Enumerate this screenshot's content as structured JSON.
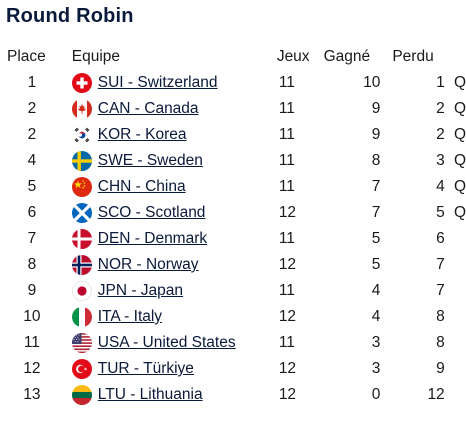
{
  "title": "Round Robin",
  "headers": {
    "place": "Place",
    "team": "Equipe",
    "games": "Jeux",
    "won": "Gagné",
    "lost": "Perdu"
  },
  "rows": [
    {
      "place": "1",
      "flag": "switzerland-flag-icon",
      "team": "SUI - Switzerland",
      "games": "11",
      "won": "10",
      "lost": "1",
      "q": "Q"
    },
    {
      "place": "2",
      "flag": "canada-flag-icon",
      "team": "CAN - Canada",
      "games": "11",
      "won": "9",
      "lost": "2",
      "q": "Q"
    },
    {
      "place": "2",
      "flag": "korea-flag-icon",
      "team": "KOR - Korea",
      "games": "11",
      "won": "9",
      "lost": "2",
      "q": "Q"
    },
    {
      "place": "4",
      "flag": "sweden-flag-icon",
      "team": "SWE - Sweden",
      "games": "11",
      "won": "8",
      "lost": "3",
      "q": "Q"
    },
    {
      "place": "5",
      "flag": "china-flag-icon",
      "team": "CHN - China",
      "games": "11",
      "won": "7",
      "lost": "4",
      "q": "Q"
    },
    {
      "place": "6",
      "flag": "scotland-flag-icon",
      "team": "SCO - Scotland",
      "games": "12",
      "won": "7",
      "lost": "5",
      "q": "Q"
    },
    {
      "place": "7",
      "flag": "denmark-flag-icon",
      "team": "DEN - Denmark",
      "games": "11",
      "won": "5",
      "lost": "6",
      "q": ""
    },
    {
      "place": "8",
      "flag": "norway-flag-icon",
      "team": "NOR - Norway",
      "games": "12",
      "won": "5",
      "lost": "7",
      "q": ""
    },
    {
      "place": "9",
      "flag": "japan-flag-icon",
      "team": "JPN - Japan",
      "games": "11",
      "won": "4",
      "lost": "7",
      "q": ""
    },
    {
      "place": "10",
      "flag": "italy-flag-icon",
      "team": "ITA - Italy",
      "games": "12",
      "won": "4",
      "lost": "8",
      "q": ""
    },
    {
      "place": "11",
      "flag": "usa-flag-icon",
      "team": "USA - United States",
      "games": "11",
      "won": "3",
      "lost": "8",
      "q": ""
    },
    {
      "place": "12",
      "flag": "turkiye-flag-icon",
      "team": "TUR - Türkiye",
      "games": "12",
      "won": "3",
      "lost": "9",
      "q": ""
    },
    {
      "place": "13",
      "flag": "lithuania-flag-icon",
      "team": "LTU - Lithuania",
      "games": "12",
      "won": "0",
      "lost": "12",
      "q": ""
    }
  ],
  "colors": {
    "title": "#0a1a3a",
    "link": "#0a1a3a",
    "text": "#1a1a1a"
  }
}
